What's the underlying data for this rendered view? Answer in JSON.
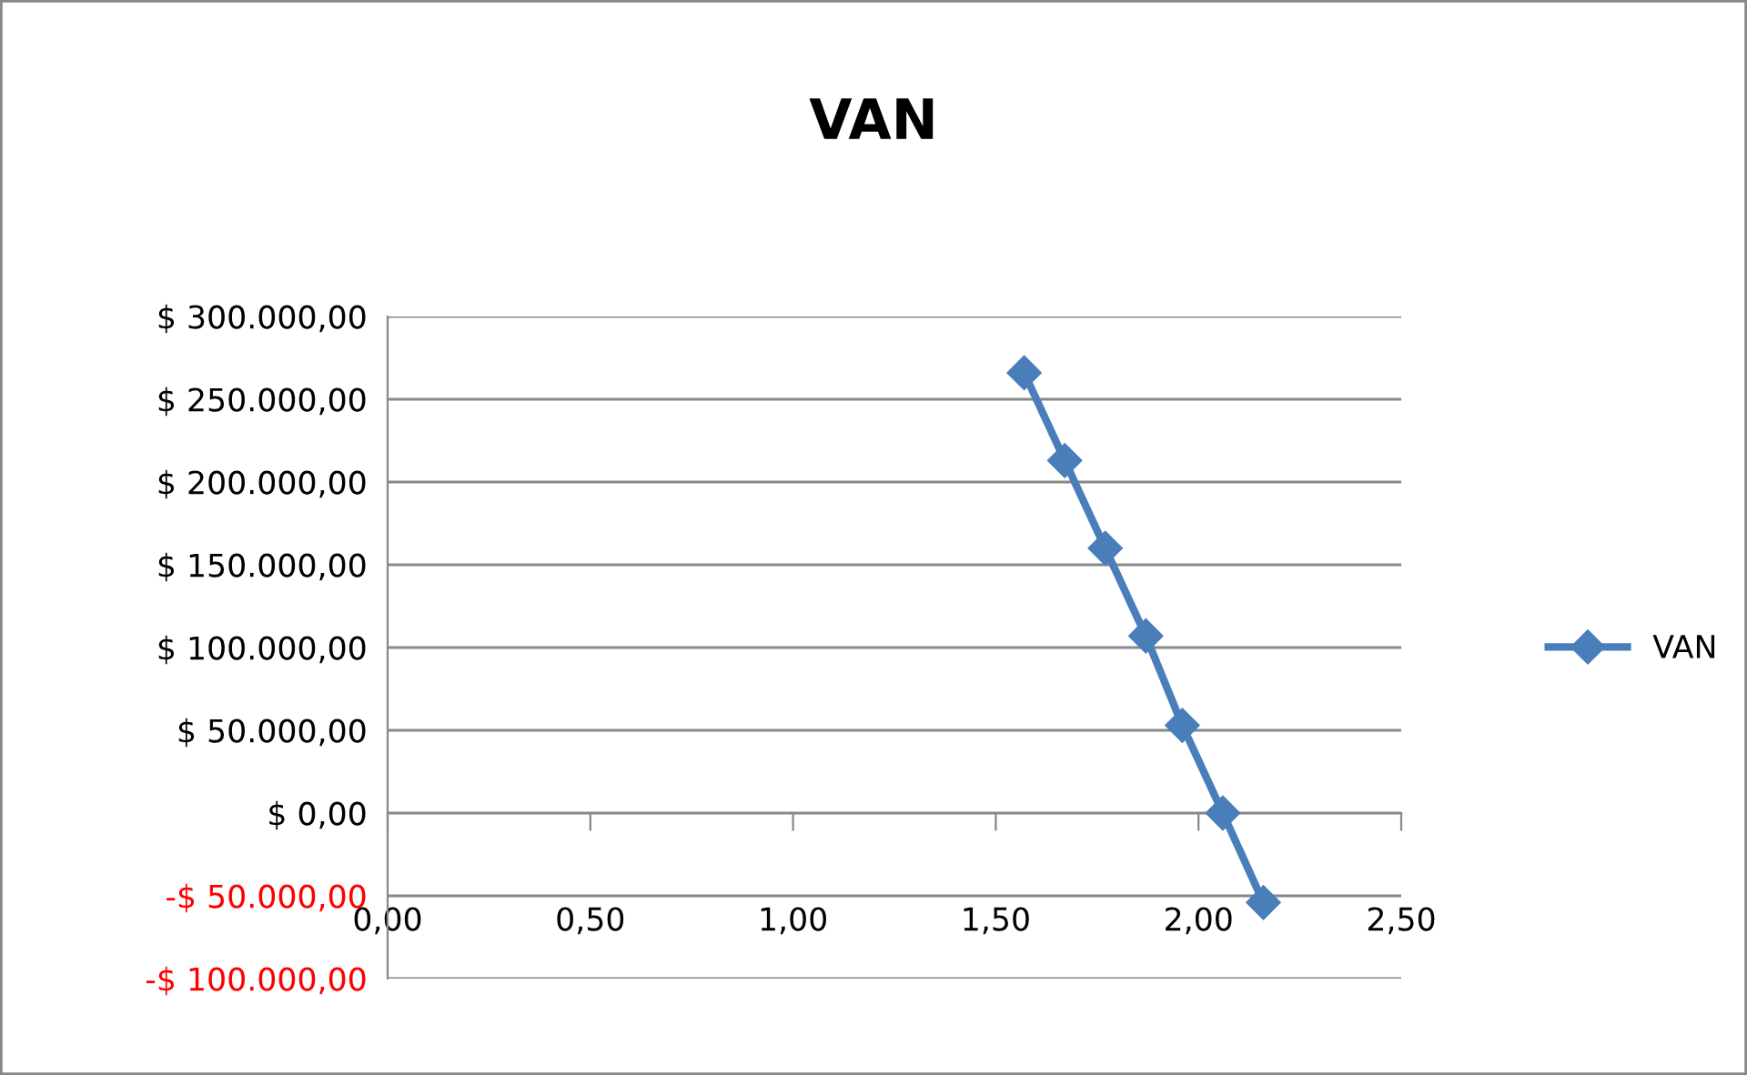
{
  "chart_data": {
    "type": "line",
    "title": "VAN",
    "series": [
      {
        "name": "VAN",
        "color": "#4a7ebb",
        "x": [
          1.57,
          1.67,
          1.77,
          1.87,
          1.96,
          2.06,
          2.16
        ],
        "values": [
          266000,
          213000,
          160000,
          107000,
          53000,
          0,
          -54000
        ]
      }
    ],
    "xlim": [
      0,
      2.5
    ],
    "xticks": [
      {
        "value": 0,
        "label": "0,00"
      },
      {
        "value": 0.5,
        "label": "0,50"
      },
      {
        "value": 1,
        "label": "1,00"
      },
      {
        "value": 1.5,
        "label": "1,50"
      },
      {
        "value": 2,
        "label": "2,00"
      },
      {
        "value": 2.5,
        "label": "2,50"
      }
    ],
    "ylim": [
      -100000,
      300000
    ],
    "yticks": [
      {
        "value": -100000,
        "label": "-$ 100.000,00"
      },
      {
        "value": -50000,
        "label": "-$ 50.000,00"
      },
      {
        "value": 0,
        "label": "$ 0,00"
      },
      {
        "value": 50000,
        "label": "$ 50.000,00"
      },
      {
        "value": 100000,
        "label": "$ 100.000,00"
      },
      {
        "value": 150000,
        "label": "$ 150.000,00"
      },
      {
        "value": 200000,
        "label": "$ 200.000,00"
      },
      {
        "value": 250000,
        "label": "$ 250.000,00"
      },
      {
        "value": 300000,
        "label": "$ 300.000,00"
      }
    ],
    "grid": "y",
    "legend": "right",
    "marker": "diamond",
    "line_style": "solid"
  }
}
